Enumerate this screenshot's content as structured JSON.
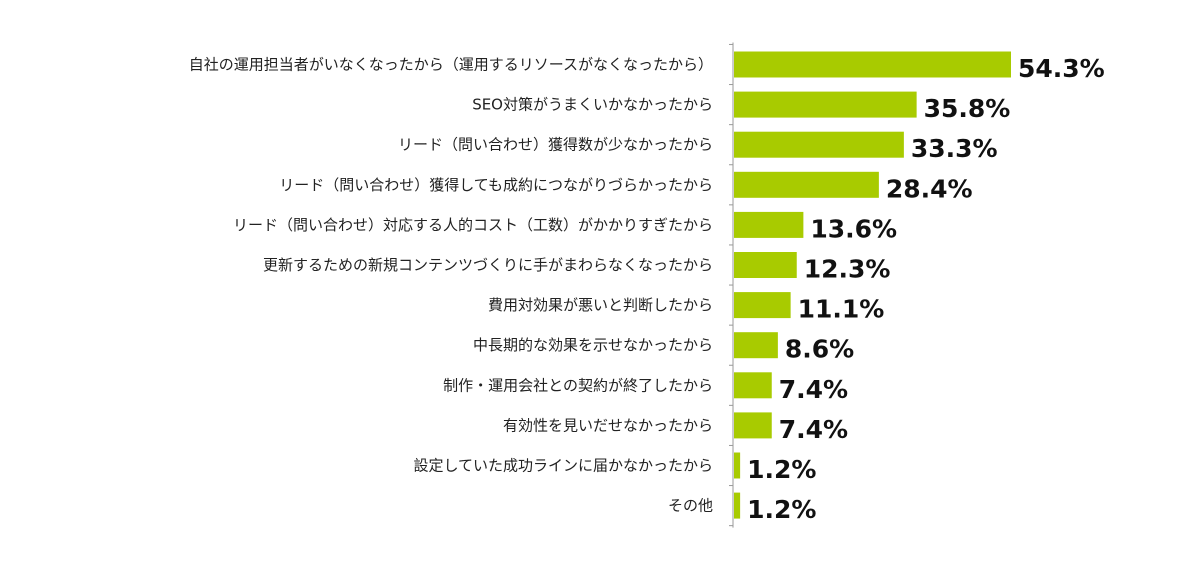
{
  "chart_data": {
    "type": "bar",
    "orientation": "horizontal",
    "categories": [
      "自社の運用担当者がいなくなったから（運用するリソースがなくなったから）",
      "SEO対策がうまくいかなかったから",
      "リード（問い合わせ）獲得数が少なかったから",
      "リード（問い合わせ）獲得しても成約につながりづらかったから",
      "リード（問い合わせ）対応する人的コスト（工数）がかかりすぎたから",
      "更新するための新規コンテンツづくりに手がまわらなくなったから",
      "費用対効果が悪いと判断したから",
      "中長期的な効果を示せなかったから",
      "制作・運用会社との契約が終了したから",
      "有効性を見いだせなかったから",
      "設定していた成功ラインに届かなかったから",
      "その他"
    ],
    "values": [
      54.3,
      35.8,
      33.3,
      28.4,
      13.6,
      12.3,
      11.1,
      8.6,
      7.4,
      7.4,
      1.2,
      1.2
    ],
    "value_labels": [
      "54.3%",
      "35.8%",
      "33.3%",
      "28.4%",
      "13.6%",
      "12.3%",
      "11.1%",
      "8.6%",
      "7.4%",
      "7.4%",
      "1.2%",
      "1.2%"
    ],
    "xlim": [
      0,
      54.3
    ],
    "bar_color": "#a8cb00",
    "axis_color": "#999999",
    "grid": false,
    "legend": "none"
  }
}
